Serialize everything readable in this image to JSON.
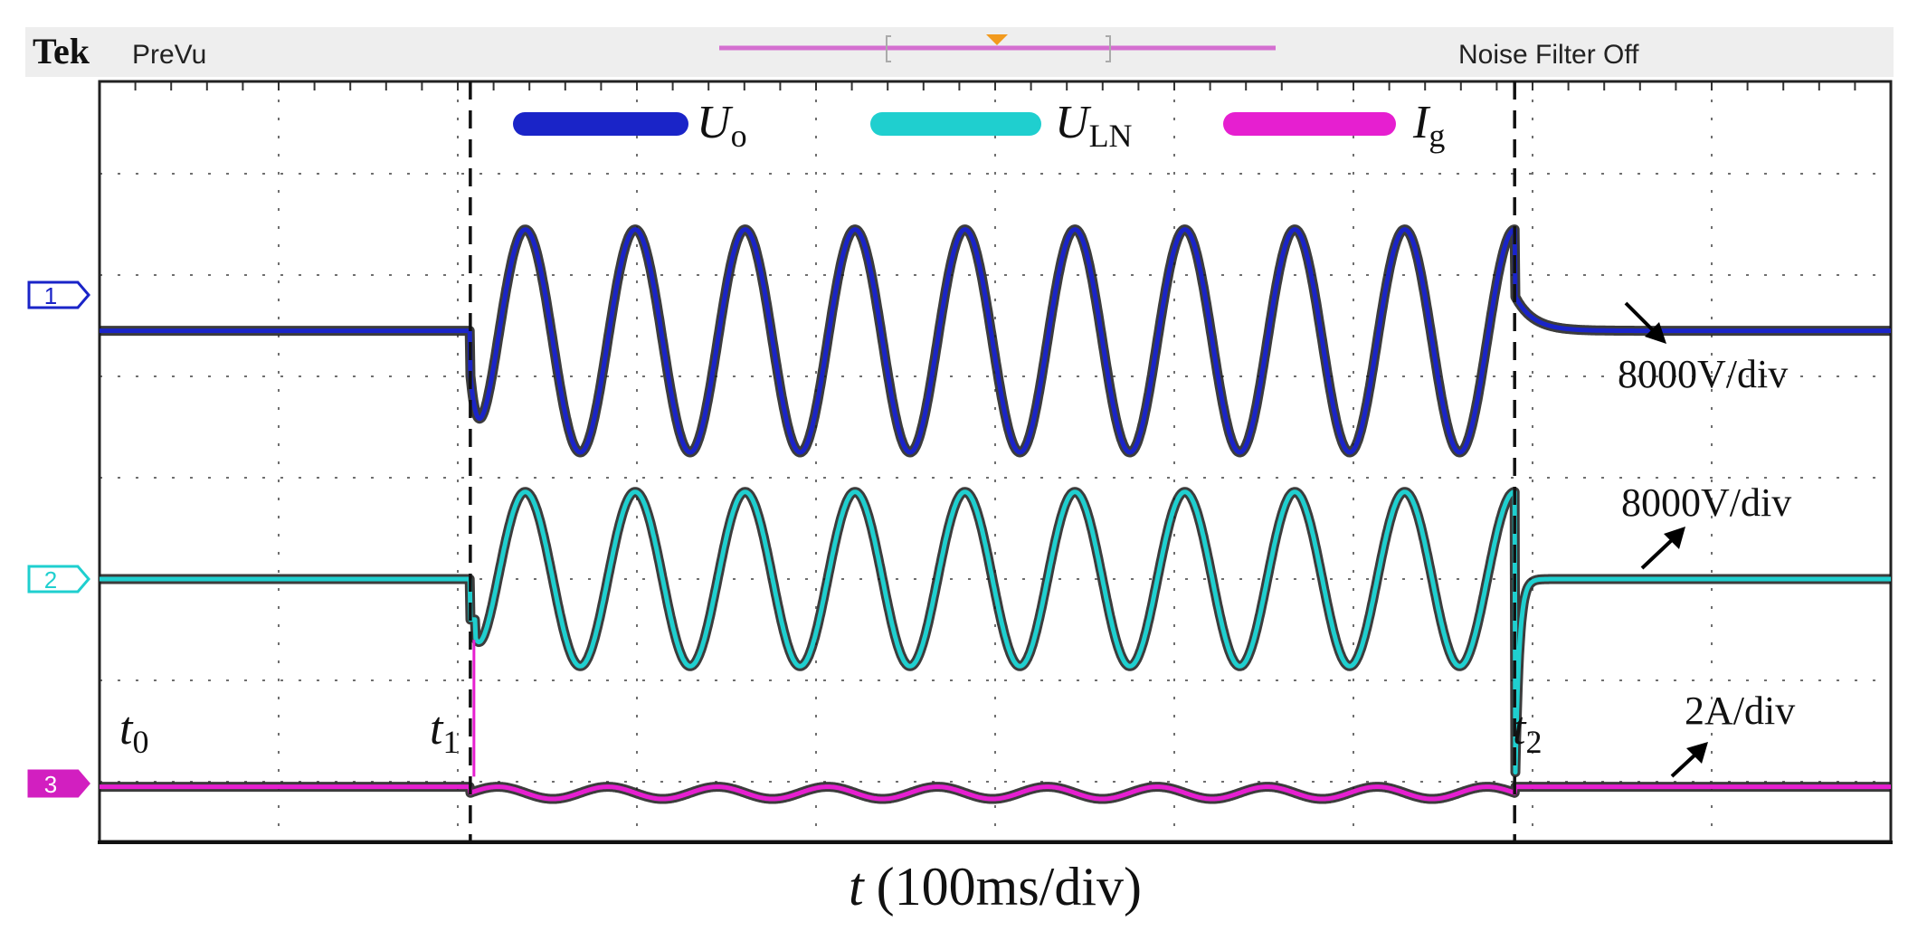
{
  "header": {
    "brand": "Tek",
    "mode": "PreVu",
    "filter_status": "Noise Filter Off"
  },
  "colors": {
    "ch1": "#1a24c8",
    "ch2": "#1fcfcf",
    "ch3": "#e61fd0",
    "trace_shadow": "#1a1a1a",
    "grid": "#6f6f6f",
    "screen_bg": "#ffffff",
    "header_bg": "#eeeeee",
    "trigger": "#f29a1e",
    "record_bar": "#d46fd0"
  },
  "legend": [
    {
      "symbol": "U",
      "subscript": "o",
      "channel": 1
    },
    {
      "symbol": "U",
      "subscript": "LN",
      "channel": 2
    },
    {
      "symbol": "I",
      "subscript": "g",
      "channel": 3
    }
  ],
  "channel_markers": [
    "1",
    "2",
    "3"
  ],
  "time_labels": [
    {
      "symbol": "t",
      "subscript": "0"
    },
    {
      "symbol": "t",
      "subscript": "1"
    },
    {
      "symbol": "t",
      "subscript": "2"
    }
  ],
  "scale_labels": {
    "ch1": "8000V/div",
    "ch2": "8000V/div",
    "ch3": "2A/div"
  },
  "chart_data": {
    "type": "line",
    "title": "",
    "xlabel_symbol": "t",
    "xlabel_unit": "(100ms/div)",
    "x_unit": "div",
    "x_range": [
      0,
      10
    ],
    "y_unit": "div",
    "y_range": [
      -4,
      4
    ],
    "grid": true,
    "events": [
      {
        "name": "t0",
        "x": 0.0
      },
      {
        "name": "t1",
        "x": 2.07
      },
      {
        "name": "t2",
        "x": 7.9
      }
    ],
    "series": [
      {
        "name": "Uo",
        "channel": 1,
        "scale": "8000V/div",
        "offset_div": 2.45,
        "amplitude_div": 1.1,
        "fault_amplitude_div": 1.0,
        "cycles_between_t1_t2": 9.5,
        "description": "flat before t1; sinusoid between t1 and t2; decays back to flat after t2"
      },
      {
        "name": "ULN",
        "channel": 2,
        "scale": "8000V/div",
        "offset_div": 0.0,
        "amplitude_div": 0.86,
        "cycles_between_t1_t2": 9.5,
        "description": "flat before t1; sinusoid between t1 and t2; sharp spike at t2 then recovers"
      },
      {
        "name": "Ig",
        "channel": 3,
        "scale": "2A/div",
        "offset_div": -2.05,
        "amplitude_div": 0.06,
        "cycles_between_t1_t2": 9.5,
        "description": "near-zero current with small ripple between t1 and t2"
      }
    ]
  }
}
